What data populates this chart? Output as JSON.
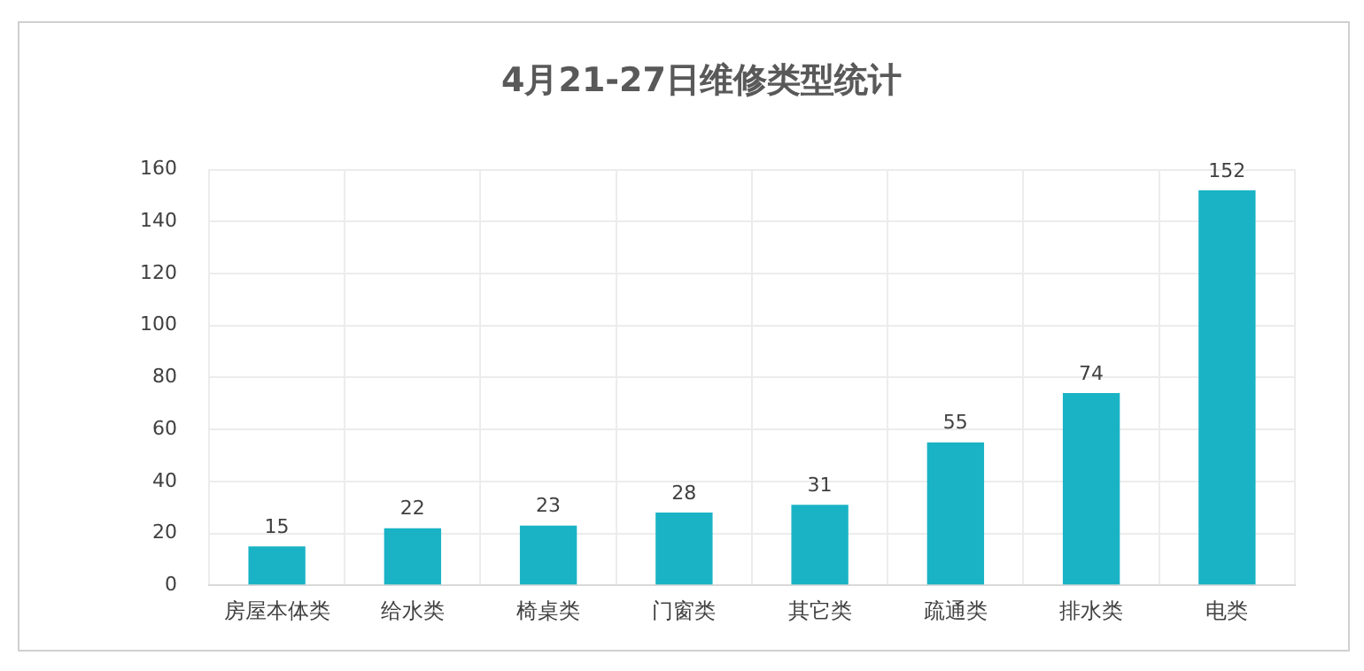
{
  "chart_data": {
    "type": "bar",
    "title": "4月21-27日维修类型统计",
    "categories": [
      "房屋本体类",
      "给水类",
      "椅桌类",
      "门窗类",
      "其它类",
      "疏通类",
      "排水类",
      "电类"
    ],
    "values": [
      15,
      22,
      23,
      28,
      31,
      55,
      74,
      152
    ],
    "color": "#1ab3c6",
    "ylim": [
      0,
      160
    ],
    "yticks": [
      0,
      20,
      40,
      60,
      80,
      100,
      120,
      140,
      160
    ],
    "grid": true,
    "data_labels": true,
    "legend": false
  }
}
